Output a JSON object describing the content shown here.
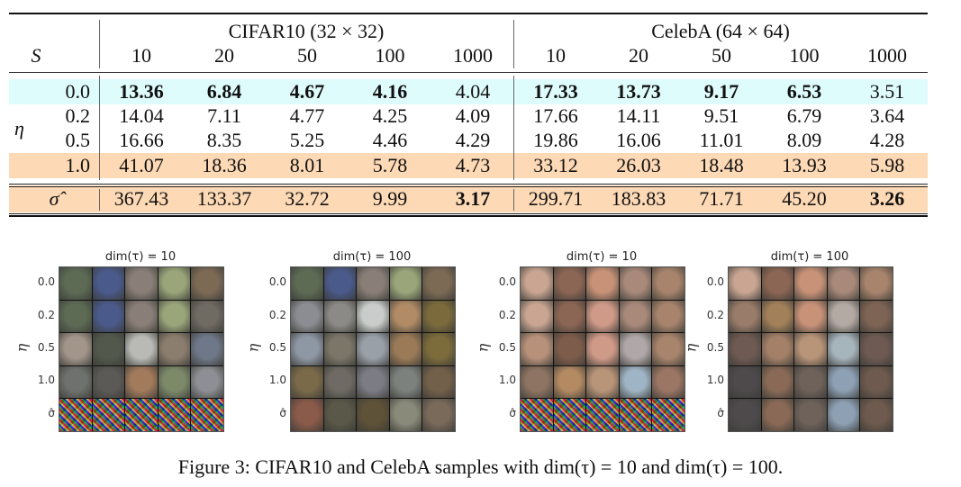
{
  "table": {
    "s_label": "S",
    "eta_label": "η",
    "sigma_label": "σ̂",
    "groups": [
      {
        "name": "CIFAR10 (32 × 32)",
        "columns": [
          "10",
          "20",
          "50",
          "100",
          "1000"
        ]
      },
      {
        "name": "CelebA (64 × 64)",
        "columns": [
          "10",
          "20",
          "50",
          "100",
          "1000"
        ]
      }
    ],
    "rows": [
      {
        "label": "0.0",
        "highlight": "cyan",
        "cifar": [
          "13.36",
          "6.84",
          "4.67",
          "4.16",
          "4.04"
        ],
        "cifar_bold": [
          true,
          true,
          true,
          true,
          false
        ],
        "celeba": [
          "17.33",
          "13.73",
          "9.17",
          "6.53",
          "3.51"
        ],
        "celeba_bold": [
          true,
          true,
          true,
          true,
          false
        ]
      },
      {
        "label": "0.2",
        "highlight": "none",
        "cifar": [
          "14.04",
          "7.11",
          "4.77",
          "4.25",
          "4.09"
        ],
        "cifar_bold": [
          false,
          false,
          false,
          false,
          false
        ],
        "celeba": [
          "17.66",
          "14.11",
          "9.51",
          "6.79",
          "3.64"
        ],
        "celeba_bold": [
          false,
          false,
          false,
          false,
          false
        ]
      },
      {
        "label": "0.5",
        "highlight": "none",
        "cifar": [
          "16.66",
          "8.35",
          "5.25",
          "4.46",
          "4.29"
        ],
        "cifar_bold": [
          false,
          false,
          false,
          false,
          false
        ],
        "celeba": [
          "19.86",
          "16.06",
          "11.01",
          "8.09",
          "4.28"
        ],
        "celeba_bold": [
          false,
          false,
          false,
          false,
          false
        ]
      },
      {
        "label": "1.0",
        "highlight": "orange",
        "cifar": [
          "41.07",
          "18.36",
          "8.01",
          "5.78",
          "4.73"
        ],
        "cifar_bold": [
          false,
          false,
          false,
          false,
          false
        ],
        "celeba": [
          "33.12",
          "26.03",
          "18.48",
          "13.93",
          "5.98"
        ],
        "celeba_bold": [
          false,
          false,
          false,
          false,
          false
        ]
      }
    ],
    "sigma_row": {
      "highlight": "orange",
      "cifar": [
        "367.43",
        "133.37",
        "32.72",
        "9.99",
        "3.17"
      ],
      "cifar_bold": [
        false,
        false,
        false,
        false,
        true
      ],
      "celeba": [
        "299.71",
        "183.83",
        "71.71",
        "45.20",
        "3.26"
      ],
      "celeba_bold": [
        false,
        false,
        false,
        false,
        true
      ]
    },
    "colors": {
      "cyan": "#dffcfd",
      "orange": "#fdd9b5"
    }
  },
  "figure": {
    "panels": [
      {
        "dataset": "CIFAR10",
        "title": "dim(τ) = 10"
      },
      {
        "dataset": "CIFAR10",
        "title": "dim(τ) = 100"
      },
      {
        "dataset": "CelebA",
        "title": "dim(τ) = 10"
      },
      {
        "dataset": "CelebA",
        "title": "dim(τ) = 100"
      }
    ],
    "y_ticks": [
      "0.0",
      "0.2",
      "0.5",
      "1.0",
      "σ̂"
    ],
    "y_label": "η"
  },
  "caption": "Figure 3: CIFAR10 and CelebA samples with dim(τ) = 10 and dim(τ) = 100."
}
